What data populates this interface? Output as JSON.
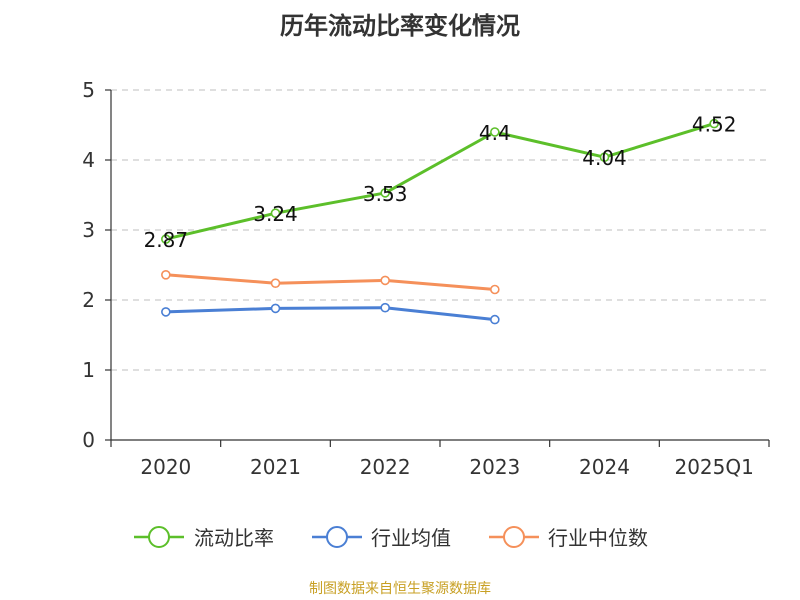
{
  "page": {
    "source_note": "制图数据来自恒生聚源数据库"
  },
  "chart_data": {
    "type": "line",
    "title": "历年流动比率变化情况",
    "categories": [
      "2020",
      "2021",
      "2022",
      "2023",
      "2024",
      "2025Q1"
    ],
    "ylim": [
      0,
      5
    ],
    "yticks": [
      0,
      1,
      2,
      3,
      4,
      5
    ],
    "grid": true,
    "legend_position": "bottom",
    "series": [
      {
        "name": "流动比率",
        "color": "#5cbf2a",
        "values": [
          2.87,
          3.24,
          3.53,
          4.4,
          4.04,
          4.52
        ],
        "data_labels": [
          "2.87",
          "3.24",
          "3.53",
          "4.4",
          "4.04",
          "4.52"
        ]
      },
      {
        "name": "行业均值",
        "color": "#4a7fd4",
        "values": [
          1.83,
          1.88,
          1.89,
          1.72,
          null,
          null
        ]
      },
      {
        "name": "行业中位数",
        "color": "#f5905a",
        "values": [
          2.36,
          2.24,
          2.28,
          2.15,
          null,
          null
        ]
      }
    ]
  }
}
